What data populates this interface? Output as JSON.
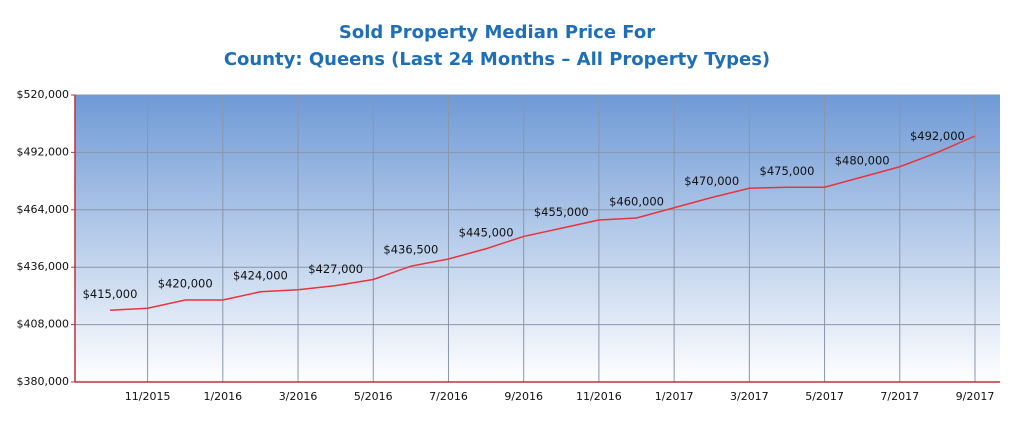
{
  "chart_data": {
    "type": "line",
    "title": "Sold Property Median Price For",
    "subtitle": "County: Queens (Last 24 Months – All Property Types)",
    "categories": [
      null,
      "11/2015",
      null,
      "1/2016",
      null,
      "3/2016",
      null,
      "5/2016",
      null,
      "7/2016",
      null,
      "9/2016",
      null,
      "11/2016",
      null,
      "1/2017",
      null,
      "3/2017",
      null,
      "5/2017",
      null,
      "7/2017",
      null,
      "9/2017"
    ],
    "series": [
      {
        "color": "#e8343a",
        "values": [
          415000,
          416000,
          420000,
          420000,
          424000,
          425000,
          427000,
          430000,
          436500,
          440000,
          445000,
          451000,
          455000,
          459000,
          460000,
          465000,
          470000,
          474500,
          475000,
          475000,
          480000,
          485000,
          492000,
          500000
        ],
        "value_labels": [
          "$415,000",
          null,
          "$420,000",
          null,
          "$424,000",
          null,
          "$427,000",
          null,
          "$436,500",
          null,
          "$445,000",
          null,
          "$455,000",
          null,
          "$460,000",
          null,
          "$470,000",
          null,
          "$475,000",
          null,
          "$480,000",
          null,
          "$492,000",
          null
        ]
      }
    ],
    "ylim": [
      380000,
      520000
    ],
    "yticks": [
      {
        "value": 380000,
        "label": "$380,000"
      },
      {
        "value": 408000,
        "label": "$408,000"
      },
      {
        "value": 436000,
        "label": "$436,000"
      },
      {
        "value": 464000,
        "label": "$464,000"
      },
      {
        "value": 492000,
        "label": "$492,000"
      },
      {
        "value": 520000,
        "label": "$520,000"
      }
    ],
    "grid": true
  }
}
